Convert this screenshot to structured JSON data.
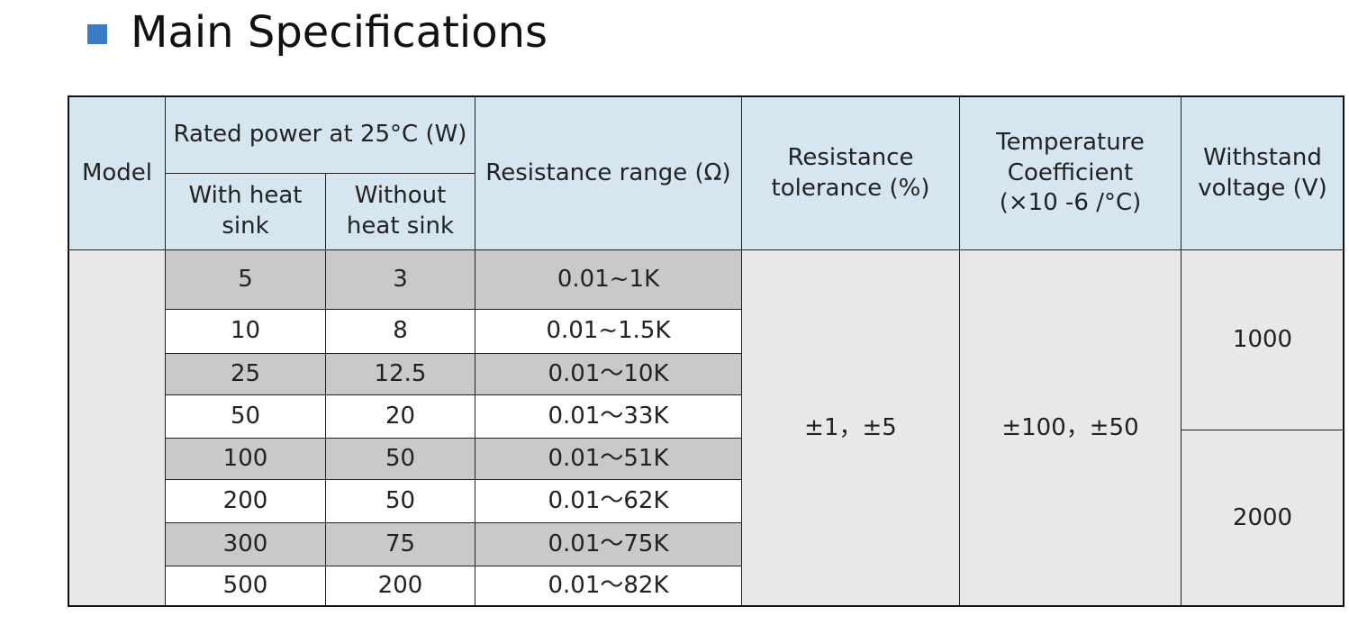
{
  "header": {
    "title": "Main Specifications"
  },
  "table": {
    "headers": {
      "model": "Model",
      "rated_power": "Rated power at 25°C (W)",
      "with_sink": "With heat sink",
      "without_sink": "Without heat sink",
      "resistance_range": "Resistance range (Ω)",
      "tolerance": "Resistance tolerance (%)",
      "tempco": "Temperature Coefficient (×10 -6 /°C)",
      "voltage": "Withstand voltage (V)"
    },
    "rows": [
      [
        "5",
        "3",
        "0.01~1K"
      ],
      [
        "10",
        "8",
        "0.01~1.5K"
      ],
      [
        "25",
        "12.5",
        "0.01～10K"
      ],
      [
        "50",
        "20",
        "0.01～33K"
      ],
      [
        "100",
        "50",
        "0.01～51K"
      ],
      [
        "200",
        "50",
        "0.01～62K"
      ],
      [
        "300",
        "75",
        "0.01～75K"
      ],
      [
        "500",
        "200",
        "0.01～82K"
      ]
    ],
    "tolerance": "±1，±5",
    "tempco": "±100，±50",
    "voltages": [
      "1000",
      "2000"
    ]
  }
}
